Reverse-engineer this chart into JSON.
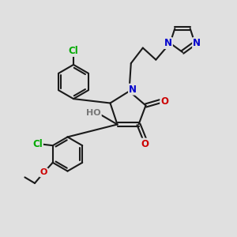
{
  "bg_color": "#e0e0e0",
  "bond_color": "#1a1a1a",
  "bond_width": 1.5,
  "atom_colors": {
    "N": "#0000cc",
    "O": "#cc0000",
    "Cl": "#00aa00",
    "H": "#777777"
  },
  "font_size": 8.5
}
